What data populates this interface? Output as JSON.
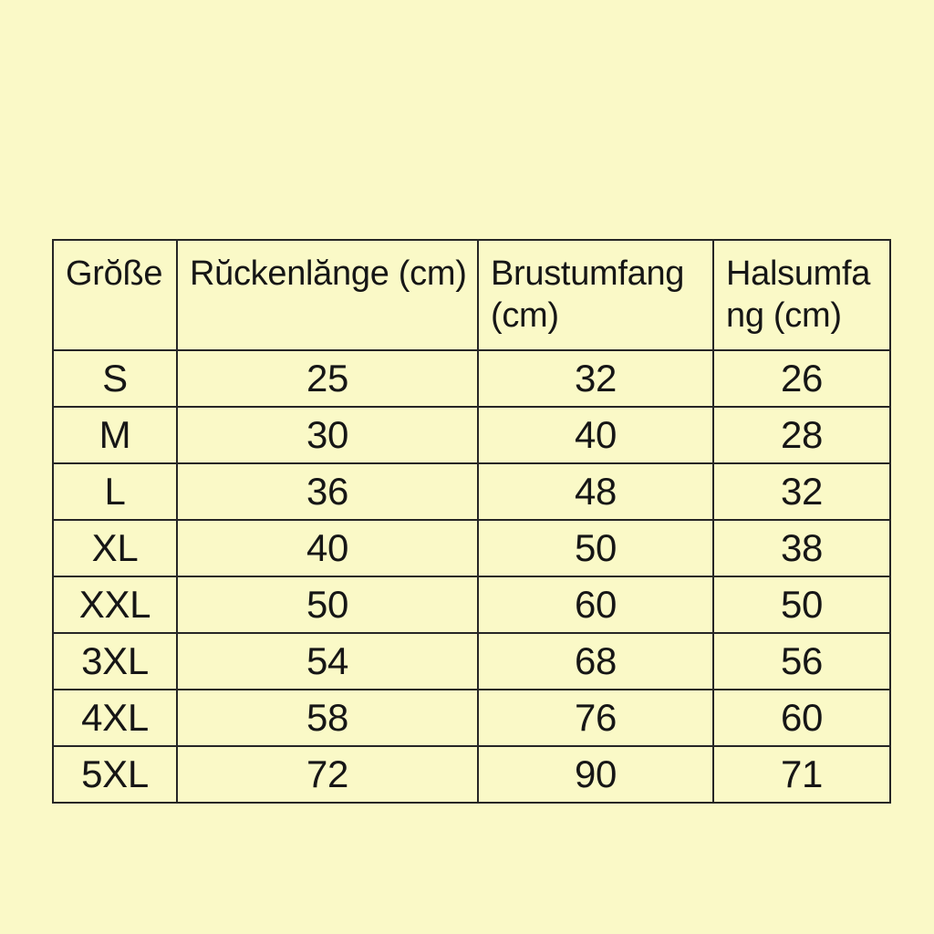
{
  "page": {
    "background_color": "#faf9c7",
    "border_color": "#262626",
    "text_color": "#161616"
  },
  "chart_data": {
    "type": "table",
    "title": "",
    "columns": [
      "Grŏße",
      "Rŭckenlănge (cm)",
      "Brustumfang (cm)",
      "Halsumfang (cm)"
    ],
    "rows": [
      [
        "S",
        25,
        32,
        26
      ],
      [
        "M",
        30,
        40,
        28
      ],
      [
        "L",
        36,
        48,
        32
      ],
      [
        "XL",
        40,
        50,
        38
      ],
      [
        "XXL",
        50,
        60,
        50
      ],
      [
        "3XL",
        54,
        68,
        56
      ],
      [
        "4XL",
        58,
        76,
        60
      ],
      [
        "5XL",
        72,
        90,
        71
      ]
    ]
  }
}
